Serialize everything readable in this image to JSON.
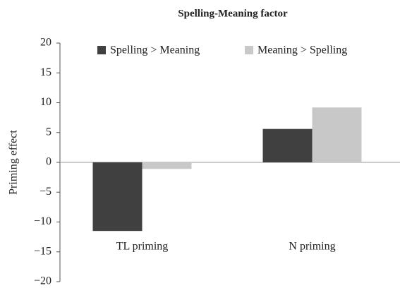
{
  "chart_data": {
    "type": "bar",
    "title": "Spelling-Meaning factor",
    "ylabel": "Priming effect",
    "categories": [
      "TL priming",
      "N priming"
    ],
    "series": [
      {
        "name": "Spelling > Meaning",
        "color": "#404040",
        "values": [
          -11.5,
          5.6
        ]
      },
      {
        "name": "Meaning > Spelling",
        "color": "#c8c8c8",
        "values": [
          -1.1,
          9.2
        ]
      }
    ],
    "ylim": [
      -20,
      20
    ],
    "yticks": [
      {
        "value": -20,
        "label": "−20"
      },
      {
        "value": -15,
        "label": "−15"
      },
      {
        "value": -10,
        "label": "−10"
      },
      {
        "value": -5,
        "label": "−5"
      },
      0,
      5,
      10,
      15,
      20
    ],
    "legend": "top"
  }
}
